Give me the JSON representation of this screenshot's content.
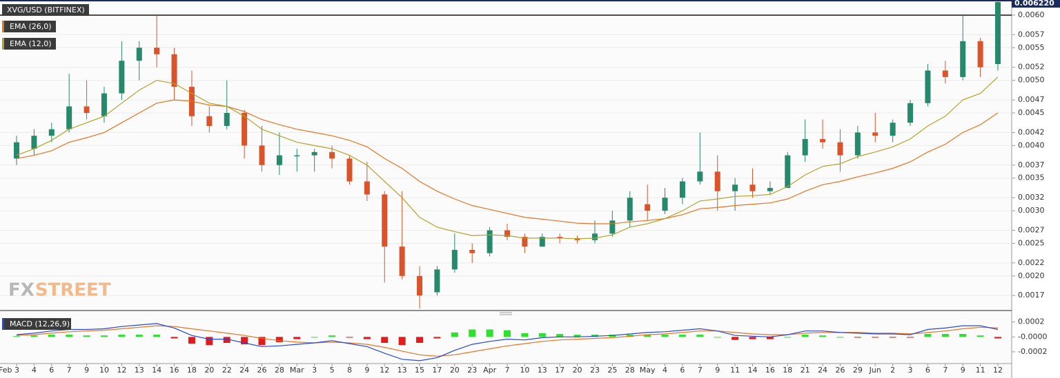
{
  "chart_data": [
    {
      "type": "candlestick",
      "title": "XVG/USD (BITFINEX)",
      "last_price": {
        "value": 0.00622,
        "label": "0.006220"
      },
      "level": 0.006,
      "open": [
        0.0038,
        0.00395,
        0.00415,
        0.00425,
        0.0046,
        0.00445,
        0.0048,
        0.0053,
        0.0055,
        0.0054,
        0.0049,
        0.00445,
        0.0043,
        0.0045,
        0.004,
        0.0037,
        0.00385,
        0.00385,
        0.0039,
        0.0038,
        0.00345,
        0.00325,
        0.00245,
        0.002,
        0.00175,
        0.0021,
        0.0024,
        0.00235,
        0.0027,
        0.0026,
        0.00245,
        0.0026,
        0.00258,
        0.00255,
        0.00265,
        0.00285,
        0.0031,
        0.003,
        0.0032,
        0.00345,
        0.0036,
        0.0033,
        0.0034,
        0.0033,
        0.00335,
        0.00385,
        0.0041,
        0.00405,
        0.00385,
        0.0042,
        0.00415,
        0.00435,
        0.00465,
        0.00515,
        0.00505,
        0.0056,
        0.00525
      ],
      "high": [
        0.00415,
        0.00425,
        0.00435,
        0.0051,
        0.005,
        0.0049,
        0.0056,
        0.0056,
        0.006,
        0.0055,
        0.00515,
        0.0046,
        0.005,
        0.00455,
        0.0043,
        0.0042,
        0.00395,
        0.00395,
        0.004,
        0.00385,
        0.00375,
        0.0033,
        0.0033,
        0.00215,
        0.00215,
        0.00265,
        0.0025,
        0.00275,
        0.0028,
        0.00265,
        0.00265,
        0.00265,
        0.00262,
        0.00285,
        0.003,
        0.0033,
        0.0034,
        0.00335,
        0.0035,
        0.0042,
        0.00385,
        0.0035,
        0.00365,
        0.00345,
        0.0039,
        0.0044,
        0.0044,
        0.00425,
        0.0043,
        0.0045,
        0.0044,
        0.0047,
        0.00525,
        0.0053,
        0.006,
        0.00565,
        0.00622
      ],
      "low": [
        0.0037,
        0.00385,
        0.00405,
        0.0042,
        0.0044,
        0.00435,
        0.0047,
        0.005,
        0.0052,
        0.0047,
        0.0043,
        0.0042,
        0.00425,
        0.0038,
        0.0036,
        0.00355,
        0.0036,
        0.0036,
        0.00365,
        0.0034,
        0.00315,
        0.0019,
        0.00195,
        0.0015,
        0.0017,
        0.00205,
        0.0022,
        0.0023,
        0.00255,
        0.00235,
        0.00245,
        0.0025,
        0.0025,
        0.0025,
        0.0026,
        0.00275,
        0.00285,
        0.00295,
        0.0031,
        0.0034,
        0.003,
        0.003,
        0.0032,
        0.00325,
        0.00335,
        0.00375,
        0.00395,
        0.0036,
        0.0038,
        0.00405,
        0.00405,
        0.0043,
        0.0046,
        0.00495,
        0.005,
        0.00505,
        0.00515
      ],
      "close": [
        0.00405,
        0.00415,
        0.00425,
        0.0046,
        0.0045,
        0.0048,
        0.0053,
        0.0055,
        0.0054,
        0.0049,
        0.00445,
        0.0043,
        0.0045,
        0.004,
        0.0037,
        0.00385,
        0.00385,
        0.0039,
        0.0038,
        0.00345,
        0.00325,
        0.00245,
        0.002,
        0.0017,
        0.0021,
        0.0024,
        0.00235,
        0.0027,
        0.0026,
        0.00245,
        0.0026,
        0.00258,
        0.00255,
        0.00265,
        0.00285,
        0.0032,
        0.003,
        0.0032,
        0.00345,
        0.0036,
        0.0033,
        0.0034,
        0.0033,
        0.00335,
        0.00385,
        0.0041,
        0.00405,
        0.00385,
        0.0042,
        0.00415,
        0.00435,
        0.00465,
        0.00515,
        0.00505,
        0.0056,
        0.0052,
        0.0062
      ],
      "up_color": "#26896b",
      "down_color": "#d9542b",
      "series": [
        {
          "name": "EMA (26,0)",
          "color": "#e8731f",
          "values": [
            0.0038,
            0.00385,
            0.00392,
            0.00405,
            0.00412,
            0.0042,
            0.00435,
            0.0045,
            0.00465,
            0.0047,
            0.00468,
            0.00462,
            0.0046,
            0.00452,
            0.0044,
            0.00432,
            0.00425,
            0.0042,
            0.00415,
            0.00408,
            0.00398,
            0.0038,
            0.00365,
            0.00345,
            0.0033,
            0.00318,
            0.00308,
            0.00302,
            0.00296,
            0.0029,
            0.00287,
            0.00284,
            0.00281,
            0.0028,
            0.0028,
            0.00283,
            0.00285,
            0.00288,
            0.00294,
            0.00303,
            0.00305,
            0.00308,
            0.0031,
            0.00312,
            0.00318,
            0.0033,
            0.0034,
            0.00345,
            0.00352,
            0.00358,
            0.00365,
            0.00375,
            0.0039,
            0.00402,
            0.0042,
            0.00432,
            0.0045
          ]
        },
        {
          "name": "EMA (12,0)",
          "color": "#b3a22b",
          "values": [
            0.00385,
            0.00395,
            0.00408,
            0.00425,
            0.00435,
            0.00445,
            0.00465,
            0.00485,
            0.005,
            0.00495,
            0.0048,
            0.00465,
            0.0046,
            0.00445,
            0.00425,
            0.00415,
            0.00405,
            0.004,
            0.00395,
            0.00385,
            0.0037,
            0.00345,
            0.0032,
            0.0029,
            0.00275,
            0.00268,
            0.00262,
            0.00263,
            0.00262,
            0.00258,
            0.00258,
            0.00258,
            0.00257,
            0.00258,
            0.00263,
            0.00275,
            0.0028,
            0.00288,
            0.003,
            0.00315,
            0.00318,
            0.00322,
            0.00323,
            0.00325,
            0.00337,
            0.00355,
            0.00368,
            0.00372,
            0.00383,
            0.0039,
            0.00398,
            0.0041,
            0.0043,
            0.00445,
            0.0047,
            0.0048,
            0.00505
          ]
        }
      ],
      "ylim": [
        0.00147,
        0.0062
      ],
      "yticks": [
        {
          "value": 0.0017,
          "label": "0.0017"
        },
        {
          "value": 0.002,
          "label": "0.0020"
        },
        {
          "value": 0.0022,
          "label": "0.0022"
        },
        {
          "value": 0.0025,
          "label": "0.0025"
        },
        {
          "value": 0.0027,
          "label": "0.0027"
        },
        {
          "value": 0.003,
          "label": "0.0030"
        },
        {
          "value": 0.0032,
          "label": "0.0032"
        },
        {
          "value": 0.0035,
          "label": "0.0035"
        },
        {
          "value": 0.0037,
          "label": "0.0037"
        },
        {
          "value": 0.004,
          "label": "0.0040"
        },
        {
          "value": 0.0042,
          "label": "0.0042"
        },
        {
          "value": 0.0045,
          "label": "0.0045"
        },
        {
          "value": 0.0047,
          "label": "0.0047"
        },
        {
          "value": 0.005,
          "label": "0.0050"
        },
        {
          "value": 0.0052,
          "label": "0.0052"
        },
        {
          "value": 0.0055,
          "label": "0.0055"
        },
        {
          "value": 0.0057,
          "label": "0.0057"
        },
        {
          "value": 0.006,
          "label": "0.0060"
        }
      ],
      "grid": true,
      "watermark": [
        "FX",
        "STREET"
      ]
    },
    {
      "type": "macd",
      "title": "MACD (12,26,9)",
      "categories": [
        "Feb 3",
        "4",
        "6",
        "7",
        "9",
        "10",
        "12",
        "13",
        "14",
        "16",
        "18",
        "20",
        "22",
        "24",
        "26",
        "28",
        "Mar",
        "3",
        "5",
        "8",
        "9",
        "12",
        "13",
        "15",
        "17",
        "20",
        "23",
        "Apr",
        "7",
        "10",
        "13",
        "17",
        "20",
        "23",
        "25",
        "28",
        "May",
        "4",
        "6",
        "7",
        "9",
        "11",
        "14",
        "16",
        "18",
        "21",
        "24",
        "26",
        "29",
        "Jun",
        "2",
        "3",
        "6",
        "7",
        "9",
        "11",
        "12"
      ],
      "macd": {
        "color": "#2447d6",
        "values": [
          3e-05,
          5e-05,
          8e-05,
          0.0001,
          0.0001,
          0.00011,
          0.00014,
          0.00016,
          0.00018,
          0.00012,
          2e-05,
          -3e-05,
          -3e-05,
          -8e-05,
          -0.00013,
          -0.00012,
          -0.0001,
          -8e-05,
          -5e-05,
          -9e-05,
          -0.00013,
          -0.00022,
          -0.0003,
          -0.00032,
          -0.00028,
          -0.00018,
          -0.0001,
          -6e-05,
          -3e-05,
          -4e-05,
          -1e-05,
          0,
          0,
          1e-05,
          2e-05,
          4e-05,
          6e-05,
          7e-05,
          9e-05,
          0.00011,
          8e-05,
          2e-05,
          1e-05,
          0,
          3e-05,
          8e-05,
          8e-05,
          6e-05,
          5e-05,
          4e-05,
          4e-05,
          3e-05,
          0.0001,
          0.00012,
          0.00015,
          0.00015,
          0.0001
        ]
      },
      "signal": {
        "color": "#e8731f",
        "values": [
          2e-05,
          3e-05,
          5e-05,
          7e-05,
          8e-05,
          9e-05,
          0.00011,
          0.00013,
          0.00015,
          0.00014,
          0.00011,
          8e-05,
          5e-05,
          2e-05,
          -2e-05,
          -5e-05,
          -7e-05,
          -8e-05,
          -7e-05,
          -8e-05,
          -0.0001,
          -0.00014,
          -0.00019,
          -0.00024,
          -0.00026,
          -0.00024,
          -0.0002,
          -0.00016,
          -0.00012,
          -9e-05,
          -6e-05,
          -4e-05,
          -3e-05,
          -2e-05,
          -1e-05,
          1e-05,
          3e-05,
          4e-05,
          6e-05,
          8e-05,
          8e-05,
          6e-05,
          4e-05,
          3e-05,
          3e-05,
          5e-05,
          6e-05,
          6e-05,
          6e-05,
          5e-05,
          5e-05,
          4e-05,
          6e-05,
          8e-05,
          0.00011,
          0.00013,
          0.00012
        ]
      },
      "histogram": {
        "up_color": "#2fe02f",
        "down_color": "#e01c1c",
        "values": [
          1e-05,
          2e-05,
          3e-05,
          3e-05,
          2e-05,
          2e-05,
          3e-05,
          3e-05,
          3e-05,
          -2e-05,
          -9e-05,
          -0.00011,
          -8e-05,
          -0.0001,
          -0.00011,
          -7e-05,
          -3e-05,
          0,
          2e-05,
          -1e-05,
          -3e-05,
          -8e-05,
          -0.00011,
          -8e-05,
          -2e-05,
          6e-05,
          0.0001,
          0.0001,
          9e-05,
          5e-05,
          5e-05,
          4e-05,
          3e-05,
          3e-05,
          3e-05,
          3e-05,
          3e-05,
          3e-05,
          3e-05,
          3e-05,
          0,
          -4e-05,
          -3e-05,
          -3e-05,
          0,
          3e-05,
          2e-05,
          0,
          -1e-05,
          -1e-05,
          -1e-05,
          -1e-05,
          4e-05,
          4e-05,
          4e-05,
          2e-05,
          -2e-05
        ]
      },
      "ylim": [
        -0.00033,
        0.00029
      ],
      "yticks": [
        {
          "value": 0.0002,
          "label": "0.0002"
        },
        {
          "value": 0,
          "label": "-0.0000"
        },
        {
          "value": -0.0002,
          "label": "-0.0002"
        }
      ]
    }
  ]
}
